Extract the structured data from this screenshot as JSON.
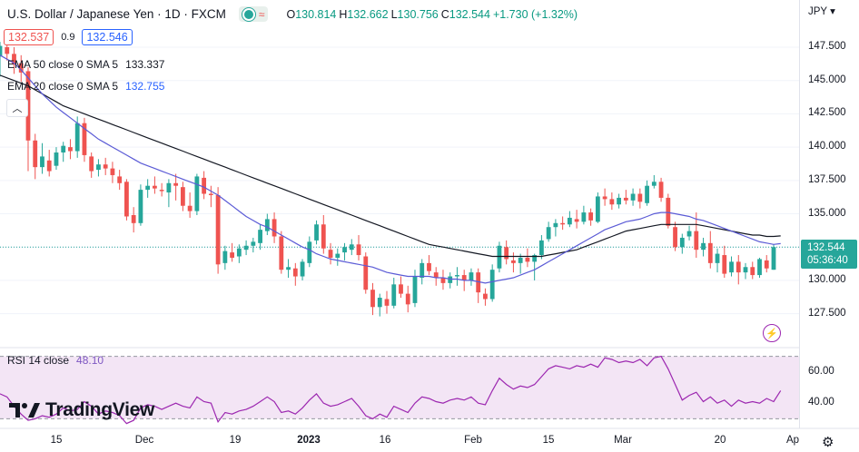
{
  "header": {
    "title": "U.S. Dollar / Japanese Yen · 1D · FXCM",
    "ohlc": [
      {
        "label": "O",
        "value": "130.814"
      },
      {
        "label": "H",
        "value": "132.662"
      },
      {
        "label": "L",
        "value": "130.756"
      },
      {
        "label": "C",
        "value": "132.544"
      },
      {
        "label": "",
        "value": "+1.730 (+1.32%)"
      }
    ]
  },
  "trade": {
    "sell_price": "132.537",
    "spread": "0.9",
    "buy_price": "132.546"
  },
  "indicators": [
    {
      "name": "EMA 50 close 0 SMA 5",
      "value": "133.337",
      "color": "#131722"
    },
    {
      "name": "EMA 20 close 0 SMA 5",
      "value": "132.755",
      "color": "#2962ff"
    }
  ],
  "rsi": {
    "name": "RSI 14 close",
    "value": "48.10",
    "color": "#7e57c2"
  },
  "currency": "JPY",
  "current_price": {
    "price": "132.544",
    "countdown": "05:36:40"
  },
  "brand": "TradingView",
  "colors": {
    "up": "#26a69a",
    "down": "#ef5350",
    "ema20": "#5b5bd6",
    "ema50": "#131722",
    "rsi": "#9c27b0",
    "rsi_band": "#f3e5f5"
  },
  "chart_data": {
    "type": "candlestick",
    "symbol": "USDJPY",
    "interval": "1D",
    "x_ticks": [
      "15",
      "Dec",
      "19",
      "2023",
      "16",
      "Feb",
      "15",
      "Mar",
      "20",
      "Ap"
    ],
    "y_ticks": [
      "147.500",
      "145.000",
      "142.500",
      "140.000",
      "137.500",
      "135.000",
      "132.500",
      "130.000",
      "127.500"
    ],
    "ylim": [
      125.5,
      149.0
    ],
    "rsi_ticks": [
      "60.00",
      "40.00"
    ],
    "rsi_ylim": [
      25,
      75
    ],
    "candles": [
      {
        "o": 146.8,
        "h": 147.9,
        "l": 145.3,
        "c": 147.6
      },
      {
        "o": 147.5,
        "h": 148.3,
        "l": 146.5,
        "c": 147.0
      },
      {
        "o": 147.0,
        "h": 147.5,
        "l": 145.5,
        "c": 146.2
      },
      {
        "o": 146.3,
        "h": 146.9,
        "l": 144.9,
        "c": 145.6
      },
      {
        "o": 145.7,
        "h": 146.0,
        "l": 138.2,
        "c": 140.5
      },
      {
        "o": 140.5,
        "h": 141.0,
        "l": 137.6,
        "c": 138.5
      },
      {
        "o": 138.5,
        "h": 140.3,
        "l": 138.0,
        "c": 139.3
      },
      {
        "o": 139.0,
        "h": 139.8,
        "l": 137.8,
        "c": 138.2
      },
      {
        "o": 138.6,
        "h": 140.0,
        "l": 138.3,
        "c": 139.6
      },
      {
        "o": 139.6,
        "h": 140.4,
        "l": 138.9,
        "c": 140.1
      },
      {
        "o": 140.0,
        "h": 140.6,
        "l": 139.1,
        "c": 139.7
      },
      {
        "o": 139.7,
        "h": 142.3,
        "l": 139.2,
        "c": 141.8
      },
      {
        "o": 141.8,
        "h": 142.2,
        "l": 138.9,
        "c": 139.4
      },
      {
        "o": 139.3,
        "h": 139.6,
        "l": 137.7,
        "c": 138.2
      },
      {
        "o": 138.3,
        "h": 139.1,
        "l": 137.8,
        "c": 138.7
      },
      {
        "o": 138.7,
        "h": 139.2,
        "l": 137.9,
        "c": 138.4
      },
      {
        "o": 138.4,
        "h": 138.9,
        "l": 137.3,
        "c": 137.9
      },
      {
        "o": 137.8,
        "h": 138.3,
        "l": 136.8,
        "c": 137.3
      },
      {
        "o": 137.4,
        "h": 137.6,
        "l": 134.5,
        "c": 134.8
      },
      {
        "o": 134.9,
        "h": 135.5,
        "l": 133.6,
        "c": 134.3
      },
      {
        "o": 134.3,
        "h": 137.2,
        "l": 134.1,
        "c": 136.8
      },
      {
        "o": 136.8,
        "h": 137.6,
        "l": 136.2,
        "c": 137.1
      },
      {
        "o": 137.1,
        "h": 137.8,
        "l": 136.5,
        "c": 136.9
      },
      {
        "o": 136.8,
        "h": 137.3,
        "l": 136.3,
        "c": 136.7
      },
      {
        "o": 136.6,
        "h": 137.6,
        "l": 135.5,
        "c": 137.3
      },
      {
        "o": 137.3,
        "h": 138.0,
        "l": 136.0,
        "c": 137.1
      },
      {
        "o": 137.0,
        "h": 137.4,
        "l": 135.2,
        "c": 135.6
      },
      {
        "o": 135.6,
        "h": 136.6,
        "l": 134.7,
        "c": 135.2
      },
      {
        "o": 135.2,
        "h": 138.0,
        "l": 134.9,
        "c": 137.8
      },
      {
        "o": 137.7,
        "h": 138.2,
        "l": 136.1,
        "c": 136.5
      },
      {
        "o": 136.5,
        "h": 137.1,
        "l": 135.5,
        "c": 136.4
      },
      {
        "o": 136.4,
        "h": 137.0,
        "l": 130.5,
        "c": 131.2
      },
      {
        "o": 131.3,
        "h": 132.6,
        "l": 130.8,
        "c": 132.2
      },
      {
        "o": 132.1,
        "h": 132.8,
        "l": 131.4,
        "c": 131.7
      },
      {
        "o": 131.8,
        "h": 132.7,
        "l": 131.3,
        "c": 132.4
      },
      {
        "o": 132.3,
        "h": 133.0,
        "l": 131.9,
        "c": 132.6
      },
      {
        "o": 132.6,
        "h": 133.2,
        "l": 132.1,
        "c": 132.9
      },
      {
        "o": 132.8,
        "h": 134.2,
        "l": 132.3,
        "c": 133.8
      },
      {
        "o": 133.7,
        "h": 135.0,
        "l": 133.4,
        "c": 134.6
      },
      {
        "o": 134.6,
        "h": 135.1,
        "l": 132.8,
        "c": 133.3
      },
      {
        "o": 133.3,
        "h": 133.7,
        "l": 130.5,
        "c": 130.8
      },
      {
        "o": 130.8,
        "h": 131.6,
        "l": 130.2,
        "c": 131.0
      },
      {
        "o": 130.9,
        "h": 131.3,
        "l": 129.6,
        "c": 130.3
      },
      {
        "o": 130.3,
        "h": 131.6,
        "l": 130.0,
        "c": 131.4
      },
      {
        "o": 131.3,
        "h": 133.3,
        "l": 131.0,
        "c": 132.9
      },
      {
        "o": 133.0,
        "h": 134.5,
        "l": 132.7,
        "c": 134.2
      },
      {
        "o": 134.2,
        "h": 134.9,
        "l": 132.0,
        "c": 132.4
      },
      {
        "o": 132.3,
        "h": 132.8,
        "l": 131.2,
        "c": 131.7
      },
      {
        "o": 131.7,
        "h": 132.4,
        "l": 131.1,
        "c": 132.0
      },
      {
        "o": 132.1,
        "h": 132.8,
        "l": 131.5,
        "c": 132.5
      },
      {
        "o": 132.3,
        "h": 133.1,
        "l": 131.9,
        "c": 132.7
      },
      {
        "o": 132.7,
        "h": 133.4,
        "l": 131.5,
        "c": 131.9
      },
      {
        "o": 131.8,
        "h": 132.1,
        "l": 129.0,
        "c": 129.3
      },
      {
        "o": 129.3,
        "h": 129.8,
        "l": 127.4,
        "c": 128.0
      },
      {
        "o": 128.0,
        "h": 129.0,
        "l": 127.3,
        "c": 128.7
      },
      {
        "o": 128.6,
        "h": 129.2,
        "l": 127.5,
        "c": 128.1
      },
      {
        "o": 128.1,
        "h": 130.2,
        "l": 127.9,
        "c": 129.7
      },
      {
        "o": 129.7,
        "h": 130.3,
        "l": 128.7,
        "c": 129.0
      },
      {
        "o": 129.0,
        "h": 129.6,
        "l": 127.6,
        "c": 128.2
      },
      {
        "o": 128.3,
        "h": 130.8,
        "l": 128.0,
        "c": 130.3
      },
      {
        "o": 130.2,
        "h": 131.6,
        "l": 129.7,
        "c": 131.3
      },
      {
        "o": 131.3,
        "h": 131.9,
        "l": 130.4,
        "c": 130.7
      },
      {
        "o": 130.6,
        "h": 131.0,
        "l": 129.6,
        "c": 130.2
      },
      {
        "o": 130.2,
        "h": 130.8,
        "l": 129.3,
        "c": 129.8
      },
      {
        "o": 129.8,
        "h": 130.6,
        "l": 129.4,
        "c": 130.3
      },
      {
        "o": 130.3,
        "h": 131.0,
        "l": 129.6,
        "c": 130.4
      },
      {
        "o": 130.4,
        "h": 130.8,
        "l": 129.2,
        "c": 130.0
      },
      {
        "o": 130.0,
        "h": 130.9,
        "l": 129.6,
        "c": 130.6
      },
      {
        "o": 130.6,
        "h": 130.9,
        "l": 128.3,
        "c": 129.1
      },
      {
        "o": 129.0,
        "h": 129.4,
        "l": 128.1,
        "c": 128.6
      },
      {
        "o": 128.6,
        "h": 131.2,
        "l": 128.4,
        "c": 130.8
      },
      {
        "o": 130.9,
        "h": 132.9,
        "l": 130.6,
        "c": 132.6
      },
      {
        "o": 132.5,
        "h": 133.0,
        "l": 131.2,
        "c": 131.6
      },
      {
        "o": 131.5,
        "h": 132.1,
        "l": 130.6,
        "c": 131.3
      },
      {
        "o": 131.3,
        "h": 132.0,
        "l": 130.5,
        "c": 131.7
      },
      {
        "o": 131.7,
        "h": 132.4,
        "l": 131.0,
        "c": 131.4
      },
      {
        "o": 131.4,
        "h": 132.0,
        "l": 130.0,
        "c": 131.9
      },
      {
        "o": 131.9,
        "h": 133.4,
        "l": 131.6,
        "c": 133.0
      },
      {
        "o": 133.1,
        "h": 134.4,
        "l": 132.9,
        "c": 134.0
      },
      {
        "o": 134.0,
        "h": 134.6,
        "l": 133.3,
        "c": 134.3
      },
      {
        "o": 134.3,
        "h": 134.8,
        "l": 133.8,
        "c": 134.2
      },
      {
        "o": 134.2,
        "h": 135.2,
        "l": 134.0,
        "c": 134.7
      },
      {
        "o": 134.6,
        "h": 135.3,
        "l": 133.9,
        "c": 134.4
      },
      {
        "o": 134.4,
        "h": 135.6,
        "l": 134.2,
        "c": 135.1
      },
      {
        "o": 135.1,
        "h": 135.4,
        "l": 134.1,
        "c": 134.5
      },
      {
        "o": 134.4,
        "h": 136.6,
        "l": 134.3,
        "c": 136.3
      },
      {
        "o": 136.3,
        "h": 136.9,
        "l": 135.6,
        "c": 136.1
      },
      {
        "o": 136.1,
        "h": 136.6,
        "l": 135.3,
        "c": 135.7
      },
      {
        "o": 135.7,
        "h": 136.5,
        "l": 135.4,
        "c": 136.2
      },
      {
        "o": 136.2,
        "h": 136.8,
        "l": 135.7,
        "c": 136.0
      },
      {
        "o": 136.0,
        "h": 136.9,
        "l": 135.6,
        "c": 136.5
      },
      {
        "o": 136.5,
        "h": 136.9,
        "l": 135.4,
        "c": 135.9
      },
      {
        "o": 135.8,
        "h": 137.5,
        "l": 135.6,
        "c": 137.1
      },
      {
        "o": 137.1,
        "h": 137.9,
        "l": 136.9,
        "c": 137.4
      },
      {
        "o": 137.4,
        "h": 137.7,
        "l": 135.9,
        "c": 136.2
      },
      {
        "o": 136.2,
        "h": 136.5,
        "l": 133.9,
        "c": 134.1
      },
      {
        "o": 134.0,
        "h": 134.4,
        "l": 132.2,
        "c": 132.5
      },
      {
        "o": 132.5,
        "h": 133.5,
        "l": 132.0,
        "c": 133.2
      },
      {
        "o": 133.3,
        "h": 134.1,
        "l": 133.0,
        "c": 133.7
      },
      {
        "o": 133.7,
        "h": 135.1,
        "l": 131.7,
        "c": 132.3
      },
      {
        "o": 132.3,
        "h": 133.2,
        "l": 131.8,
        "c": 132.8
      },
      {
        "o": 132.8,
        "h": 133.7,
        "l": 130.9,
        "c": 131.3
      },
      {
        "o": 131.3,
        "h": 132.4,
        "l": 130.6,
        "c": 132.0
      },
      {
        "o": 131.9,
        "h": 132.6,
        "l": 130.2,
        "c": 130.5
      },
      {
        "o": 130.6,
        "h": 131.8,
        "l": 130.3,
        "c": 131.4
      },
      {
        "o": 131.4,
        "h": 131.9,
        "l": 129.7,
        "c": 130.6
      },
      {
        "o": 130.6,
        "h": 131.3,
        "l": 130.1,
        "c": 131.0
      },
      {
        "o": 131.0,
        "h": 131.4,
        "l": 130.1,
        "c": 130.4
      },
      {
        "o": 130.4,
        "h": 131.7,
        "l": 130.2,
        "c": 131.6
      },
      {
        "o": 131.5,
        "h": 131.9,
        "l": 130.6,
        "c": 130.9
      },
      {
        "o": 130.8,
        "h": 132.7,
        "l": 130.8,
        "c": 132.5
      }
    ],
    "ema20": [
      146.9,
      146.6,
      146.3,
      145.8,
      145.2,
      144.6,
      144.0,
      143.5,
      143.0,
      142.6,
      142.2,
      141.8,
      141.4,
      141.0,
      140.6,
      140.3,
      140.0,
      139.7,
      139.4,
      139.1,
      138.8,
      138.6,
      138.4,
      138.2,
      138.0,
      137.8,
      137.6,
      137.4,
      137.2,
      137.0,
      136.7,
      136.4,
      136.0,
      135.6,
      135.2,
      134.8,
      134.5,
      134.2,
      134.0,
      133.7,
      133.4,
      133.1,
      132.8,
      132.5,
      132.3,
      132.0,
      131.8,
      131.6,
      131.5,
      131.4,
      131.3,
      131.2,
      131.1,
      131.0,
      130.8,
      130.6,
      130.5,
      130.4,
      130.3,
      130.3,
      130.3,
      130.3,
      130.2,
      130.2,
      130.1,
      130.1,
      130.0,
      130.0,
      129.9,
      129.8,
      129.9,
      130.0,
      130.1,
      130.2,
      130.4,
      130.6,
      130.8,
      131.1,
      131.4,
      131.7,
      132.0,
      132.3,
      132.6,
      132.9,
      133.2,
      133.5,
      133.8,
      134.0,
      134.2,
      134.4,
      134.5,
      134.6,
      134.8,
      135.0,
      135.1,
      135.1,
      135.0,
      134.9,
      134.8,
      134.6,
      134.5,
      134.3,
      134.1,
      133.9,
      133.7,
      133.5,
      133.3,
      133.1,
      132.9,
      132.8,
      132.7,
      132.76
    ],
    "ema50": [
      145.4,
      145.2,
      145.0,
      144.8,
      144.6,
      144.3,
      144.0,
      143.7,
      143.4,
      143.1,
      142.9,
      142.7,
      142.5,
      142.3,
      142.1,
      141.9,
      141.7,
      141.5,
      141.3,
      141.1,
      140.9,
      140.7,
      140.5,
      140.3,
      140.1,
      139.9,
      139.7,
      139.5,
      139.3,
      139.1,
      138.9,
      138.7,
      138.5,
      138.3,
      138.1,
      137.9,
      137.7,
      137.5,
      137.3,
      137.1,
      136.9,
      136.7,
      136.5,
      136.3,
      136.1,
      135.9,
      135.7,
      135.5,
      135.3,
      135.1,
      134.9,
      134.7,
      134.5,
      134.3,
      134.1,
      133.9,
      133.7,
      133.5,
      133.3,
      133.1,
      132.9,
      132.7,
      132.6,
      132.5,
      132.4,
      132.3,
      132.2,
      132.1,
      132.0,
      131.9,
      131.8,
      131.8,
      131.8,
      131.8,
      131.8,
      131.8,
      131.8,
      131.8,
      131.9,
      132.0,
      132.1,
      132.2,
      132.3,
      132.5,
      132.7,
      132.9,
      133.1,
      133.3,
      133.5,
      133.7,
      133.8,
      133.9,
      134.0,
      134.1,
      134.2,
      134.2,
      134.2,
      134.2,
      134.2,
      134.2,
      134.1,
      134.0,
      133.9,
      133.8,
      133.7,
      133.6,
      133.5,
      133.4,
      133.4,
      133.3,
      133.3,
      133.34
    ],
    "rsi_values": [
      46,
      44,
      38,
      33,
      29,
      30,
      32,
      31,
      33,
      37,
      35,
      36,
      41,
      38,
      33,
      35,
      34,
      32,
      27,
      29,
      37,
      39,
      38,
      36,
      38,
      40,
      38,
      37,
      44,
      41,
      40,
      28,
      34,
      33,
      35,
      36,
      38,
      41,
      44,
      41,
      34,
      35,
      33,
      37,
      42,
      46,
      40,
      38,
      39,
      41,
      43,
      38,
      32,
      30,
      33,
      31,
      38,
      36,
      34,
      40,
      44,
      43,
      41,
      40,
      42,
      43,
      42,
      44,
      40,
      39,
      48,
      56,
      52,
      49,
      51,
      50,
      52,
      57,
      62,
      64,
      63,
      62,
      64,
      63,
      65,
      63,
      69,
      68,
      66,
      67,
      66,
      68,
      64,
      69,
      70,
      62,
      52,
      42,
      45,
      47,
      41,
      44,
      40,
      42,
      38,
      42,
      40,
      41,
      40,
      43,
      41,
      48
    ]
  }
}
